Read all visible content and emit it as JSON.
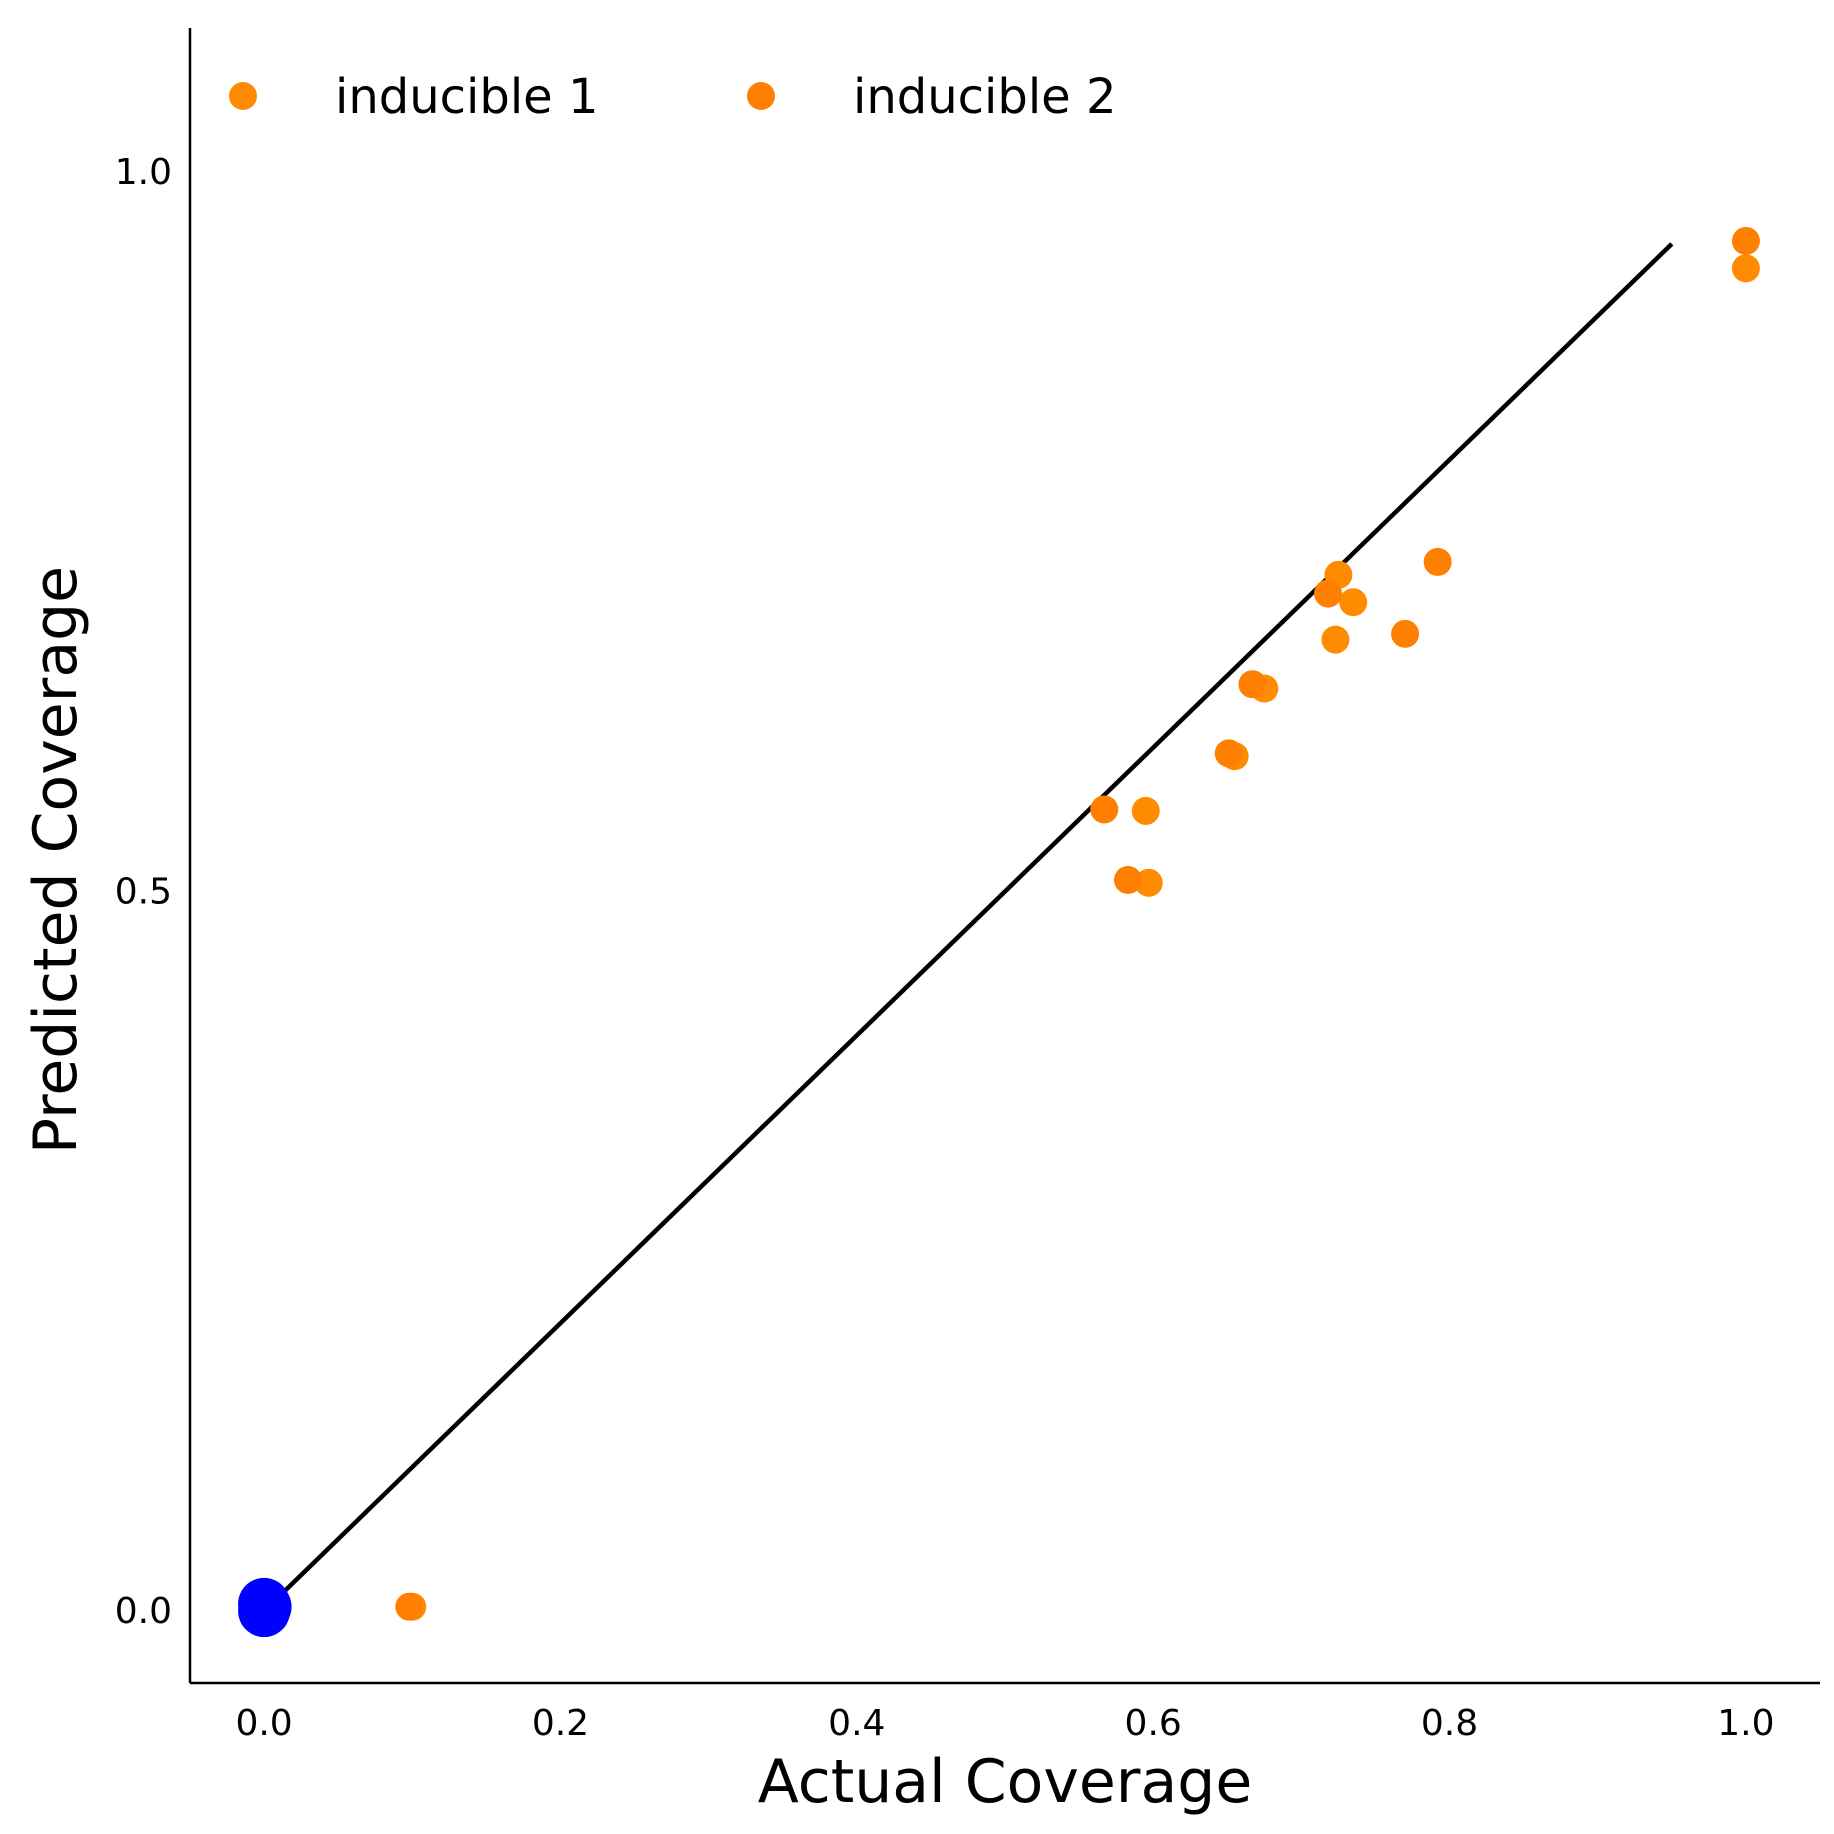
{
  "chart_data": {
    "type": "scatter",
    "xlabel": "Actual Coverage",
    "ylabel": "Predicted Coverage",
    "xlim": [
      -0.05,
      1.05
    ],
    "ylim": [
      -0.05,
      1.1
    ],
    "xticks": [
      {
        "value": 0.0,
        "label": "0.0"
      },
      {
        "value": 0.2,
        "label": "0.2"
      },
      {
        "value": 0.4,
        "label": "0.4"
      },
      {
        "value": 0.6,
        "label": "0.6"
      },
      {
        "value": 0.8,
        "label": "0.8"
      },
      {
        "value": 1.0,
        "label": "1.0"
      }
    ],
    "yticks": [
      {
        "value": 0.0,
        "label": "0.0"
      },
      {
        "value": 0.5,
        "label": "0.5"
      },
      {
        "value": 1.0,
        "label": "1.0"
      }
    ],
    "grid": false,
    "legend_position": "top-left",
    "reference_line": {
      "x": [
        0.0,
        0.95
      ],
      "y": [
        0.0,
        0.95
      ],
      "color": "#000000"
    },
    "series": [
      {
        "name": "inducible 1",
        "color": "#ff8c00",
        "points": [
          {
            "x": 0.1,
            "y": 0.003
          },
          {
            "x": 0.595,
            "y": 0.556
          },
          {
            "x": 0.597,
            "y": 0.506
          },
          {
            "x": 0.655,
            "y": 0.594
          },
          {
            "x": 0.675,
            "y": 0.641
          },
          {
            "x": 0.723,
            "y": 0.675
          },
          {
            "x": 0.725,
            "y": 0.72
          },
          {
            "x": 0.735,
            "y": 0.701
          },
          {
            "x": 1.0,
            "y": 0.933
          }
        ]
      },
      {
        "name": "inducible 2",
        "color": "#ff7f00",
        "points": [
          {
            "x": 0.098,
            "y": 0.003
          },
          {
            "x": 0.567,
            "y": 0.557
          },
          {
            "x": 0.583,
            "y": 0.508
          },
          {
            "x": 0.651,
            "y": 0.596
          },
          {
            "x": 0.667,
            "y": 0.644
          },
          {
            "x": 0.718,
            "y": 0.707
          },
          {
            "x": 0.77,
            "y": 0.679
          },
          {
            "x": 0.792,
            "y": 0.729
          },
          {
            "x": 1.0,
            "y": 0.952
          }
        ]
      },
      {
        "color": "#0000ff",
        "marker_size": "large",
        "points": [
          {
            "x": 0.0,
            "y": 0.005
          },
          {
            "x": 0.0,
            "y": 0.0
          },
          {
            "x": 0.001,
            "y": 0.003
          }
        ]
      }
    ]
  }
}
